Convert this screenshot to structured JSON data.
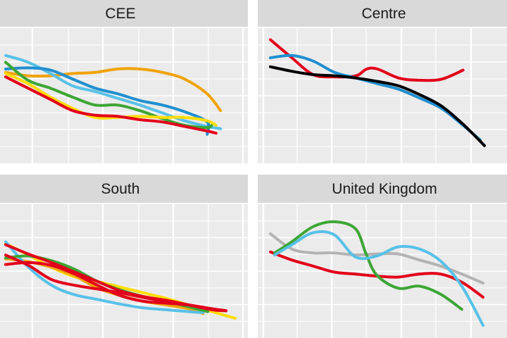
{
  "chart_data": [
    {
      "type": "line",
      "title": "CEE",
      "x_range": [
        0,
        100
      ],
      "y_range": [
        0,
        100
      ],
      "grid": true,
      "series": [
        {
          "color": "#F0A30A",
          "x": [
            0,
            10,
            20,
            30,
            40,
            50,
            60,
            70,
            80,
            90,
            96
          ],
          "y": [
            67,
            64,
            64,
            66,
            67,
            70,
            70,
            67,
            61,
            48,
            33
          ]
        },
        {
          "color": "#57C1E8",
          "x": [
            0,
            10,
            20,
            30,
            40,
            50,
            60,
            70,
            80,
            90,
            96
          ],
          "y": [
            82,
            76,
            66,
            55,
            50,
            44,
            38,
            31,
            24,
            19,
            17
          ]
        },
        {
          "color": "#1F8FD0",
          "x": [
            0,
            10,
            20,
            30,
            40,
            50,
            60,
            70,
            80,
            90,
            90
          ],
          "y": [
            70,
            71,
            69,
            61,
            53,
            48,
            42,
            38,
            32,
            23,
            12
          ]
        },
        {
          "color": "#3DA635",
          "x": [
            0,
            10,
            20,
            30,
            40,
            50,
            60,
            70,
            80,
            90,
            92
          ],
          "y": [
            76,
            60,
            53,
            45,
            38,
            38,
            33,
            26,
            20,
            18,
            20
          ]
        },
        {
          "color": "#FFDD00",
          "x": [
            0,
            10,
            20,
            30,
            40,
            50,
            60,
            70,
            80,
            90,
            94
          ],
          "y": [
            66,
            57,
            45,
            35,
            27,
            27,
            28,
            27,
            27,
            24,
            20
          ]
        },
        {
          "color": "#E2001A",
          "x": [
            0,
            10,
            20,
            30,
            40,
            50,
            60,
            70,
            80,
            90,
            94
          ],
          "y": [
            63,
            53,
            43,
            33,
            29,
            28,
            25,
            23,
            19,
            15,
            13
          ]
        }
      ]
    },
    {
      "type": "line",
      "title": "Centre",
      "x_range": [
        0,
        100
      ],
      "y_range": [
        0,
        100
      ],
      "grid": true,
      "series": [
        {
          "color": "#E2001A",
          "x": [
            0,
            10,
            20,
            30,
            40,
            45,
            50,
            60,
            70,
            80,
            90
          ],
          "y": [
            96,
            80,
            65,
            63,
            64,
            70,
            70,
            62,
            60,
            61,
            69
          ]
        },
        {
          "color": "#1F8FD0",
          "x": [
            0,
            10,
            20,
            30,
            40,
            50,
            60,
            70,
            80,
            90,
            98
          ],
          "y": [
            80,
            82,
            77,
            67,
            62,
            57,
            52,
            44,
            35,
            20,
            7
          ]
        },
        {
          "color": "#000000",
          "x": [
            0,
            10,
            20,
            30,
            40,
            50,
            60,
            70,
            80,
            90,
            100
          ],
          "y": [
            72,
            68,
            65,
            64,
            62,
            59,
            55,
            47,
            37,
            21,
            2
          ]
        }
      ]
    },
    {
      "type": "line",
      "title": "South",
      "x_range": [
        0,
        100
      ],
      "y_range": [
        0,
        100
      ],
      "grid": true,
      "series": [
        {
          "color": "#FFDD00",
          "x": [
            0,
            10,
            20,
            30,
            40,
            50,
            60,
            70,
            80,
            90,
            100
          ],
          "y": [
            82,
            70,
            57,
            47,
            42,
            36,
            30,
            24,
            17,
            10,
            3
          ]
        },
        {
          "color": "#F0A30A",
          "x": [
            0,
            10,
            20,
            30,
            40,
            50,
            60,
            70,
            80,
            86
          ],
          "y": [
            66,
            63,
            57,
            48,
            35,
            27,
            21,
            17,
            13,
            8
          ]
        },
        {
          "color": "#57C1E8",
          "x": [
            0,
            10,
            20,
            30,
            40,
            50,
            60,
            70,
            80,
            86
          ],
          "y": [
            84,
            57,
            38,
            28,
            23,
            18,
            14,
            12,
            10,
            9
          ]
        },
        {
          "color": "#3DA635",
          "x": [
            0,
            10,
            20,
            30,
            40,
            50,
            60,
            70,
            80,
            88
          ],
          "y": [
            67,
            69,
            64,
            55,
            42,
            33,
            26,
            21,
            15,
            10
          ]
        },
        {
          "color": "#E2001A",
          "x": [
            0,
            10,
            20,
            30,
            40,
            50,
            60,
            70,
            80,
            90,
            96
          ],
          "y": [
            81,
            71,
            62,
            52,
            42,
            32,
            26,
            22,
            17,
            12,
            11
          ]
        },
        {
          "color": "#E2001A",
          "x": [
            0,
            10,
            20,
            30,
            40,
            50,
            60,
            70,
            80,
            90,
            96
          ],
          "y": [
            60,
            62,
            59,
            50,
            38,
            27,
            21,
            19,
            17,
            13,
            11
          ]
        },
        {
          "color": "#E2001A",
          "x": [
            0,
            10,
            20,
            30,
            40,
            50,
            60,
            70,
            80,
            90,
            96
          ],
          "y": [
            70,
            59,
            44,
            38,
            34,
            30,
            25,
            21,
            17,
            13,
            11
          ]
        }
      ]
    },
    {
      "type": "line",
      "title": "United Kingdom",
      "x_range": [
        0,
        100
      ],
      "y_range": [
        0,
        100
      ],
      "grid": true,
      "series": [
        {
          "color": "#B3B3B3",
          "x": [
            0,
            10,
            20,
            30,
            40,
            50,
            60,
            70,
            80,
            90,
            100
          ],
          "y": [
            86,
            71,
            67,
            67,
            65,
            66,
            66,
            60,
            54,
            46,
            37
          ]
        },
        {
          "color": "#E2001A",
          "x": [
            0,
            10,
            20,
            30,
            40,
            50,
            60,
            70,
            80,
            90,
            100
          ],
          "y": [
            68,
            60,
            54,
            48,
            46,
            44,
            43,
            46,
            46,
            38,
            23
          ]
        },
        {
          "color": "#3DA635",
          "x": [
            2,
            10,
            20,
            30,
            40,
            45,
            50,
            60,
            70,
            80,
            90
          ],
          "y": [
            67,
            78,
            93,
            98,
            91,
            66,
            45,
            32,
            34,
            26,
            11
          ]
        },
        {
          "color": "#57C1E8",
          "x": [
            2,
            10,
            20,
            30,
            40,
            50,
            60,
            70,
            80,
            90,
            100
          ],
          "y": [
            65,
            75,
            87,
            85,
            63,
            64,
            73,
            71,
            59,
            34,
            -5
          ]
        }
      ]
    }
  ]
}
